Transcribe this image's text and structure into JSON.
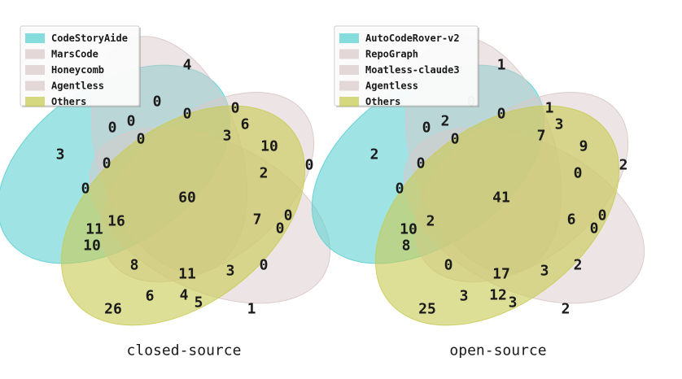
{
  "colors": {
    "set1": "#5fd0d2",
    "set2": "#d9c8c8",
    "set3": "#d9c8c8",
    "set4": "#d9c8c8",
    "set5": "#c9cc55"
  },
  "chart_data": [
    {
      "type": "venn",
      "caption": "closed-source",
      "legend": [
        "CodeStoryAide",
        "MarsCode",
        "Honeycomb",
        "Agentless",
        "Others"
      ],
      "regions": [
        {
          "value": "4"
        },
        {
          "value": "3"
        },
        {
          "value": "0"
        },
        {
          "value": "1"
        },
        {
          "value": "26"
        },
        {
          "value": "0"
        },
        {
          "value": "0"
        },
        {
          "value": "0"
        },
        {
          "value": "0"
        },
        {
          "value": "0"
        },
        {
          "value": "0"
        },
        {
          "value": "0"
        },
        {
          "value": "0"
        },
        {
          "value": "6"
        },
        {
          "value": "3"
        },
        {
          "value": "10"
        },
        {
          "value": "2"
        },
        {
          "value": "7"
        },
        {
          "value": "0"
        },
        {
          "value": "0"
        },
        {
          "value": "60"
        },
        {
          "value": "11"
        },
        {
          "value": "16"
        },
        {
          "value": "10"
        },
        {
          "value": "8"
        },
        {
          "value": "11"
        },
        {
          "value": "3"
        },
        {
          "value": "0"
        },
        {
          "value": "6"
        },
        {
          "value": "4"
        },
        {
          "value": "5"
        }
      ]
    },
    {
      "type": "venn",
      "caption": "open-source",
      "legend": [
        "AutoCodeRover-v2",
        "RepoGraph",
        "Moatless-claude3",
        "Agentless",
        "Others"
      ],
      "regions": [
        {
          "value": "1"
        },
        {
          "value": "2"
        },
        {
          "value": "2"
        },
        {
          "value": "2"
        },
        {
          "value": "25"
        },
        {
          "value": "0"
        },
        {
          "value": "1"
        },
        {
          "value": "0"
        },
        {
          "value": "2"
        },
        {
          "value": "0"
        },
        {
          "value": "0"
        },
        {
          "value": "0"
        },
        {
          "value": "0"
        },
        {
          "value": "3"
        },
        {
          "value": "7"
        },
        {
          "value": "9"
        },
        {
          "value": "0"
        },
        {
          "value": "6"
        },
        {
          "value": "0"
        },
        {
          "value": "0"
        },
        {
          "value": "41"
        },
        {
          "value": "10"
        },
        {
          "value": "2"
        },
        {
          "value": "8"
        },
        {
          "value": "0"
        },
        {
          "value": "17"
        },
        {
          "value": "3"
        },
        {
          "value": "2"
        },
        {
          "value": "3"
        },
        {
          "value": "12"
        },
        {
          "value": "3"
        }
      ]
    }
  ]
}
